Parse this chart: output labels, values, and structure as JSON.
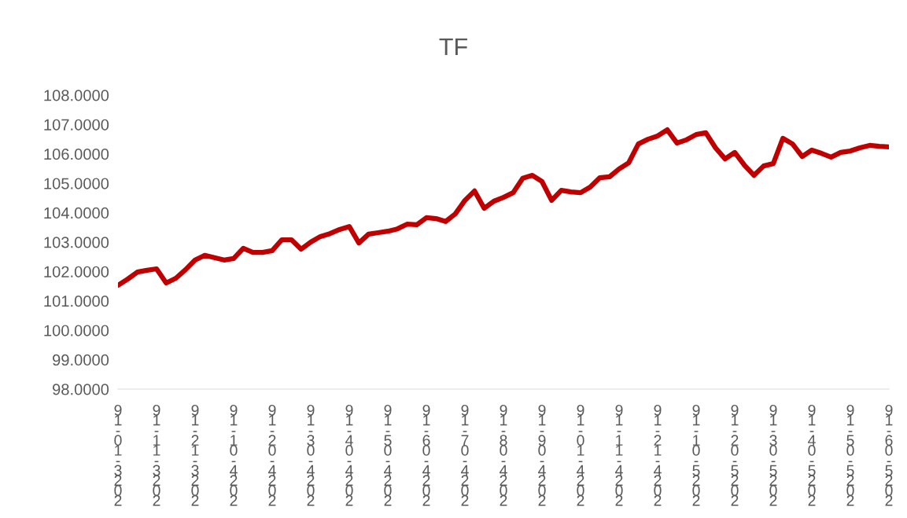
{
  "chart_data": {
    "type": "line",
    "title": "TF",
    "categories": [
      "91-01-3202",
      null,
      null,
      null,
      "91-11-3202",
      null,
      null,
      null,
      "91-21-3202",
      null,
      null,
      null,
      "91-10-4202",
      null,
      null,
      null,
      "91-20-4202",
      null,
      null,
      null,
      "91-30-4202",
      null,
      null,
      null,
      "91-40-4202",
      null,
      null,
      null,
      "91-50-4202",
      null,
      null,
      null,
      "91-60-4202",
      null,
      null,
      null,
      "91-70-4202",
      null,
      null,
      null,
      "91-80-4202",
      null,
      null,
      null,
      "91-90-4202",
      null,
      null,
      null,
      "91-01-4202",
      null,
      null,
      null,
      "91-11-4202",
      null,
      null,
      null,
      "91-21-4202",
      null,
      null,
      null,
      "91-10-5202",
      null,
      null,
      null,
      "91-20-5202",
      null,
      null,
      null,
      "91-30-5202",
      null,
      null,
      null,
      "91-40-5202",
      null,
      null,
      null,
      "91-50-5202",
      null,
      null,
      null,
      "91-60-5202"
    ],
    "series": [
      {
        "color": "#c00000",
        "values": [
          101.53,
          101.74,
          101.98,
          102.04,
          102.09,
          101.61,
          101.77,
          102.06,
          102.39,
          102.55,
          102.47,
          102.39,
          102.44,
          102.79,
          102.65,
          102.65,
          102.71,
          103.08,
          103.08,
          102.76,
          103.0,
          103.19,
          103.29,
          103.43,
          103.53,
          102.97,
          103.27,
          103.32,
          103.37,
          103.45,
          103.61,
          103.59,
          103.83,
          103.8,
          103.7,
          103.96,
          104.42,
          104.74,
          104.15,
          104.39,
          104.52,
          104.68,
          105.17,
          105.27,
          105.06,
          104.42,
          104.76,
          104.71,
          104.68,
          104.87,
          105.19,
          105.22,
          105.49,
          105.7,
          106.34,
          106.5,
          106.61,
          106.82,
          106.37,
          106.48,
          106.66,
          106.72,
          106.21,
          105.83,
          106.05,
          105.62,
          105.27,
          105.59,
          105.67,
          106.53,
          106.34,
          105.91,
          106.13,
          106.02,
          105.89,
          106.05,
          106.1,
          106.21,
          106.29,
          106.26,
          106.24
        ]
      }
    ],
    "ylim": [
      98,
      108
    ],
    "yticks": [
      {
        "value": 98,
        "label": "98.0000"
      },
      {
        "value": 99,
        "label": "99.0000"
      },
      {
        "value": 100,
        "label": "100.0000"
      },
      {
        "value": 101,
        "label": "101.0000"
      },
      {
        "value": 102,
        "label": "102.0000"
      },
      {
        "value": 103,
        "label": "103.0000"
      },
      {
        "value": 104,
        "label": "104.0000"
      },
      {
        "value": 105,
        "label": "105.0000"
      },
      {
        "value": 106,
        "label": "106.0000"
      },
      {
        "value": 107,
        "label": "107.0000"
      },
      {
        "value": 108,
        "label": "108.0000"
      }
    ],
    "grid": false,
    "legend": false,
    "marker": "none",
    "line_style": "solid"
  }
}
